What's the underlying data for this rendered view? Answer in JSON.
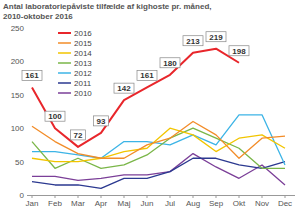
{
  "chart_data": {
    "type": "line",
    "title": "Antal laboratoriepåviste tilfælde af kighoste pr. måned, 2010-oktober 2016",
    "categories": [
      "Jan",
      "Feb",
      "Mar",
      "Apr",
      "Maj",
      "Jun",
      "Jul",
      "Aug",
      "Sep",
      "Okt",
      "Nov",
      "Dec"
    ],
    "series": [
      {
        "name": "2016",
        "color": "#e8262b",
        "data_labels": true,
        "values": [
          161,
          100,
          72,
          93,
          142,
          161,
          180,
          213,
          219,
          198,
          null,
          null
        ]
      },
      {
        "name": "2015",
        "color": "#f28c28",
        "values": [
          103,
          80,
          62,
          55,
          55,
          75,
          85,
          110,
          90,
          55,
          85,
          88
        ]
      },
      {
        "name": "2014",
        "color": "#f2c500",
        "values": [
          55,
          50,
          50,
          55,
          65,
          70,
          100,
          90,
          65,
          85,
          90,
          70
        ]
      },
      {
        "name": "2013",
        "color": "#7ab648",
        "values": [
          80,
          40,
          55,
          40,
          45,
          60,
          85,
          100,
          85,
          70,
          40,
          40
        ]
      },
      {
        "name": "2012",
        "color": "#3cb4e6",
        "values": [
          65,
          65,
          60,
          55,
          80,
          80,
          75,
          90,
          75,
          120,
          120,
          45
        ]
      },
      {
        "name": "2011",
        "color": "#2b3990",
        "values": [
          20,
          15,
          15,
          10,
          25,
          25,
          35,
          55,
          55,
          45,
          40,
          50
        ]
      },
      {
        "name": "2010",
        "color": "#7b3f98",
        "values": [
          28,
          28,
          22,
          25,
          30,
          30,
          35,
          62,
          42,
          25,
          45,
          15
        ]
      }
    ],
    "ylim": [
      0,
      250
    ],
    "yticks": [
      0,
      50,
      100,
      150,
      200,
      250
    ],
    "grid": false,
    "legend": "upper left"
  }
}
